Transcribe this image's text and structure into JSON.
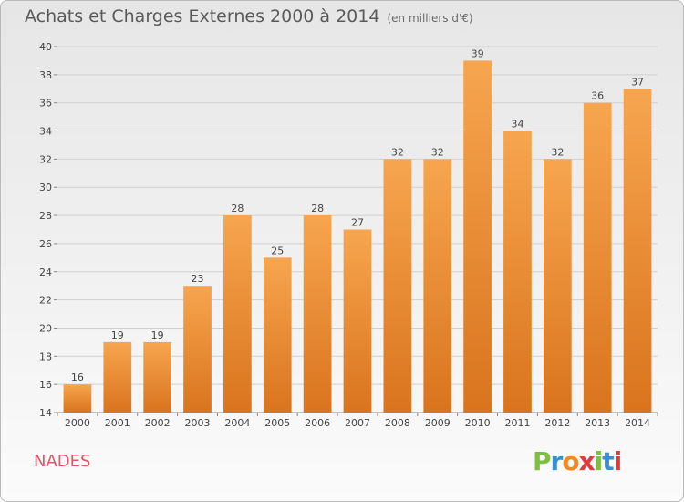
{
  "title": "Achats et Charges Externes 2000 à 2014",
  "unit": "(en milliers d'€)",
  "commune": "NADES",
  "logo": {
    "text": "Proxiti",
    "colors": [
      "#7fbf3f",
      "#3a8fd0",
      "#f08a24",
      "#e03a3a",
      "#7fbf3f",
      "#3a8fd0",
      "#e03a3a"
    ]
  },
  "colors": {
    "bar_top": "#f7a54f",
    "bar_bottom": "#d9741d",
    "grid": "#d0d0d0",
    "axis_text": "#444444"
  },
  "chart_data": {
    "type": "bar",
    "title": "Achats et Charges Externes 2000 à 2014",
    "ylabel": "",
    "xlabel": "",
    "categories": [
      "2000",
      "2001",
      "2002",
      "2003",
      "2004",
      "2005",
      "2006",
      "2007",
      "2008",
      "2009",
      "2010",
      "2011",
      "2012",
      "2013",
      "2014"
    ],
    "values": [
      16,
      19,
      19,
      23,
      28,
      25,
      28,
      27,
      32,
      32,
      39,
      34,
      32,
      36,
      37
    ],
    "ylim": [
      14,
      40
    ],
    "yticks": [
      14,
      16,
      18,
      20,
      22,
      24,
      26,
      28,
      30,
      32,
      34,
      36,
      38,
      40
    ],
    "grid": true
  }
}
